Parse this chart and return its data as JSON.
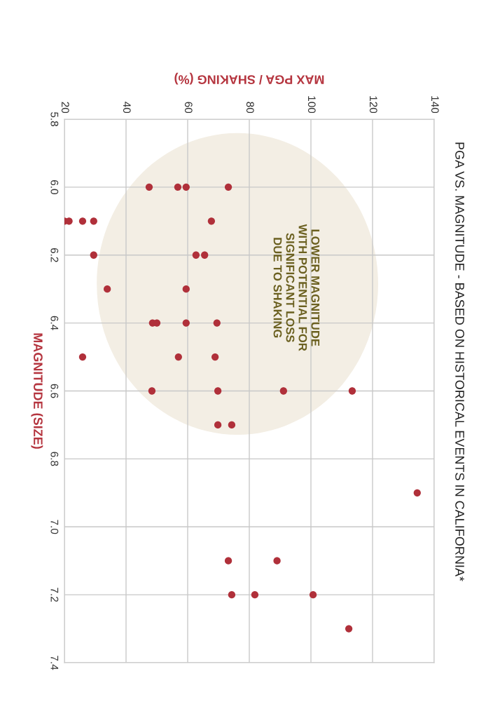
{
  "chart_data": {
    "type": "scatter",
    "title": "PGA VS. MAGNITUDE - BASED ON HISTORICAL EVENTS IN CALIFORNIA*",
    "xlabel": "MAX PGA / SHAKING (%)",
    "ylabel": "MAGNITUDE (SIZE)",
    "x": [
      47.5,
      56.8,
      59.5,
      73.2,
      20,
      21.5,
      25.9,
      29.5,
      67.7,
      29.5,
      62.7,
      65.5,
      33.9,
      59.5,
      48.6,
      50,
      59.5,
      69.5,
      25.9,
      57,
      68.9,
      48.4,
      69.8,
      91.1,
      113.4,
      69.8,
      74.3,
      134.5,
      73.2,
      89,
      74.3,
      81.8,
      100.7,
      112.3
    ],
    "series": [
      {
        "color": "#b0303a",
        "values": [
          6.0,
          6.0,
          6.0,
          6.0,
          6.1,
          6.1,
          6.1,
          6.1,
          6.1,
          6.2,
          6.2,
          6.2,
          6.3,
          6.3,
          6.4,
          6.4,
          6.4,
          6.4,
          6.5,
          6.5,
          6.5,
          6.6,
          6.6,
          6.6,
          6.6,
          6.7,
          6.7,
          6.9,
          7.1,
          7.1,
          7.2,
          7.2,
          7.2,
          7.3
        ]
      }
    ],
    "xlim": [
      20,
      140
    ],
    "xticks": [
      20,
      40,
      60,
      80,
      100,
      120,
      140
    ],
    "ylim": [
      7.4,
      5.8
    ],
    "yticks": [
      5.8,
      {
        "value": 6.0,
        "label": "6.0"
      },
      6.2,
      6.4,
      6.6,
      6.8,
      {
        "value": 7.0,
        "label": "7.0"
      },
      7.2,
      7.4
    ],
    "annotations": [
      "LOWER MAGNITUDE\nWITH POTENTIAL FOR\nSIGNIFICANT LOSS\nDUE TO SHAKING"
    ],
    "grid": true,
    "marker": "circle"
  }
}
